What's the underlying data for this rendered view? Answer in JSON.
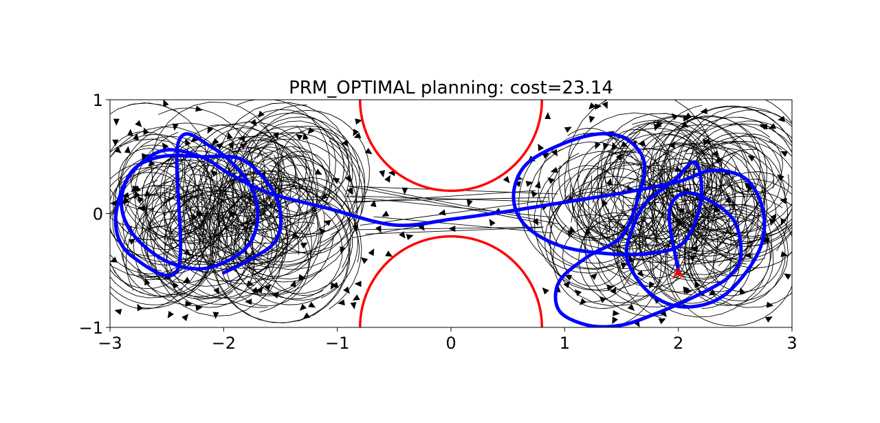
{
  "chart_data": {
    "type": "line",
    "title": "PRM_OPTIMAL planning: cost=23.14",
    "xlabel": "",
    "ylabel": "",
    "xlim": [
      -3,
      3
    ],
    "ylim": [
      -1,
      1
    ],
    "xticks": [
      -3,
      -2,
      -1,
      0,
      1,
      2,
      3
    ],
    "xtick_labels": [
      "−3",
      "−2",
      "−1",
      "0",
      "1",
      "2",
      "3"
    ],
    "yticks": [
      -1,
      0,
      1
    ],
    "ytick_labels": [
      "−1",
      "0",
      "1"
    ],
    "grid": false,
    "obstacles": [
      {
        "center": [
          0,
          1
        ],
        "radius": 0.8,
        "color": "#ff0000"
      },
      {
        "center": [
          0,
          -1
        ],
        "radius": 0.8,
        "color": "#ff0000"
      }
    ],
    "roadmap_color": "#000000",
    "path_color": "#0000ff",
    "goal": {
      "x": 2,
      "y": -0.5,
      "color": "#ff0000"
    },
    "path": {
      "name": "",
      "x": [
        -2.0,
        -1.8,
        -1.55,
        -1.5,
        -1.6,
        -1.85,
        -2.2,
        -2.55,
        -2.8,
        -2.9,
        -2.8,
        -2.5,
        -2.15,
        -1.8,
        -1.7,
        -1.8,
        -2.1,
        -2.4,
        -2.4,
        -2.8,
        -2.95,
        -2.85,
        -2.55,
        -2.2,
        -1.95,
        -1.6,
        -1.1,
        -0.5,
        0.0,
        0.5,
        1.0,
        1.5,
        2.0,
        2.3,
        2.6,
        2.75,
        2.7,
        2.4,
        2.05,
        1.75,
        1.55,
        1.6,
        1.72,
        1.95,
        2.15,
        2.2,
        2.05,
        1.75,
        1.35,
        0.95,
        0.65,
        0.55,
        0.65,
        0.95,
        1.3,
        1.55,
        1.7,
        1.65,
        1.5,
        1.2,
        0.95,
        0.95,
        1.2,
        1.5,
        1.8,
        2.1,
        2.3,
        2.45,
        2.55,
        2.5,
        2.3,
        2.05,
        1.92,
        2.0
      ],
      "y": [
        -0.52,
        -0.42,
        -0.25,
        0.0,
        0.25,
        0.48,
        0.5,
        0.5,
        0.38,
        0.1,
        -0.18,
        -0.42,
        -0.48,
        -0.3,
        0.0,
        0.3,
        0.58,
        0.62,
        -0.48,
        -0.38,
        -0.1,
        0.3,
        0.55,
        0.5,
        0.35,
        0.18,
        0.05,
        -0.1,
        -0.05,
        0.02,
        0.1,
        0.18,
        0.28,
        0.38,
        0.3,
        0.0,
        -0.35,
        -0.72,
        -0.82,
        -0.7,
        -0.4,
        -0.12,
        0.1,
        0.28,
        0.45,
        0.12,
        -0.25,
        -0.35,
        -0.35,
        -0.28,
        -0.1,
        0.15,
        0.42,
        0.6,
        0.7,
        0.65,
        0.45,
        0.15,
        -0.2,
        -0.38,
        -0.6,
        -0.85,
        -0.98,
        -0.98,
        -0.88,
        -0.75,
        -0.65,
        -0.55,
        -0.38,
        -0.08,
        0.1,
        0.18,
        0.0,
        -0.5
      ]
    }
  }
}
